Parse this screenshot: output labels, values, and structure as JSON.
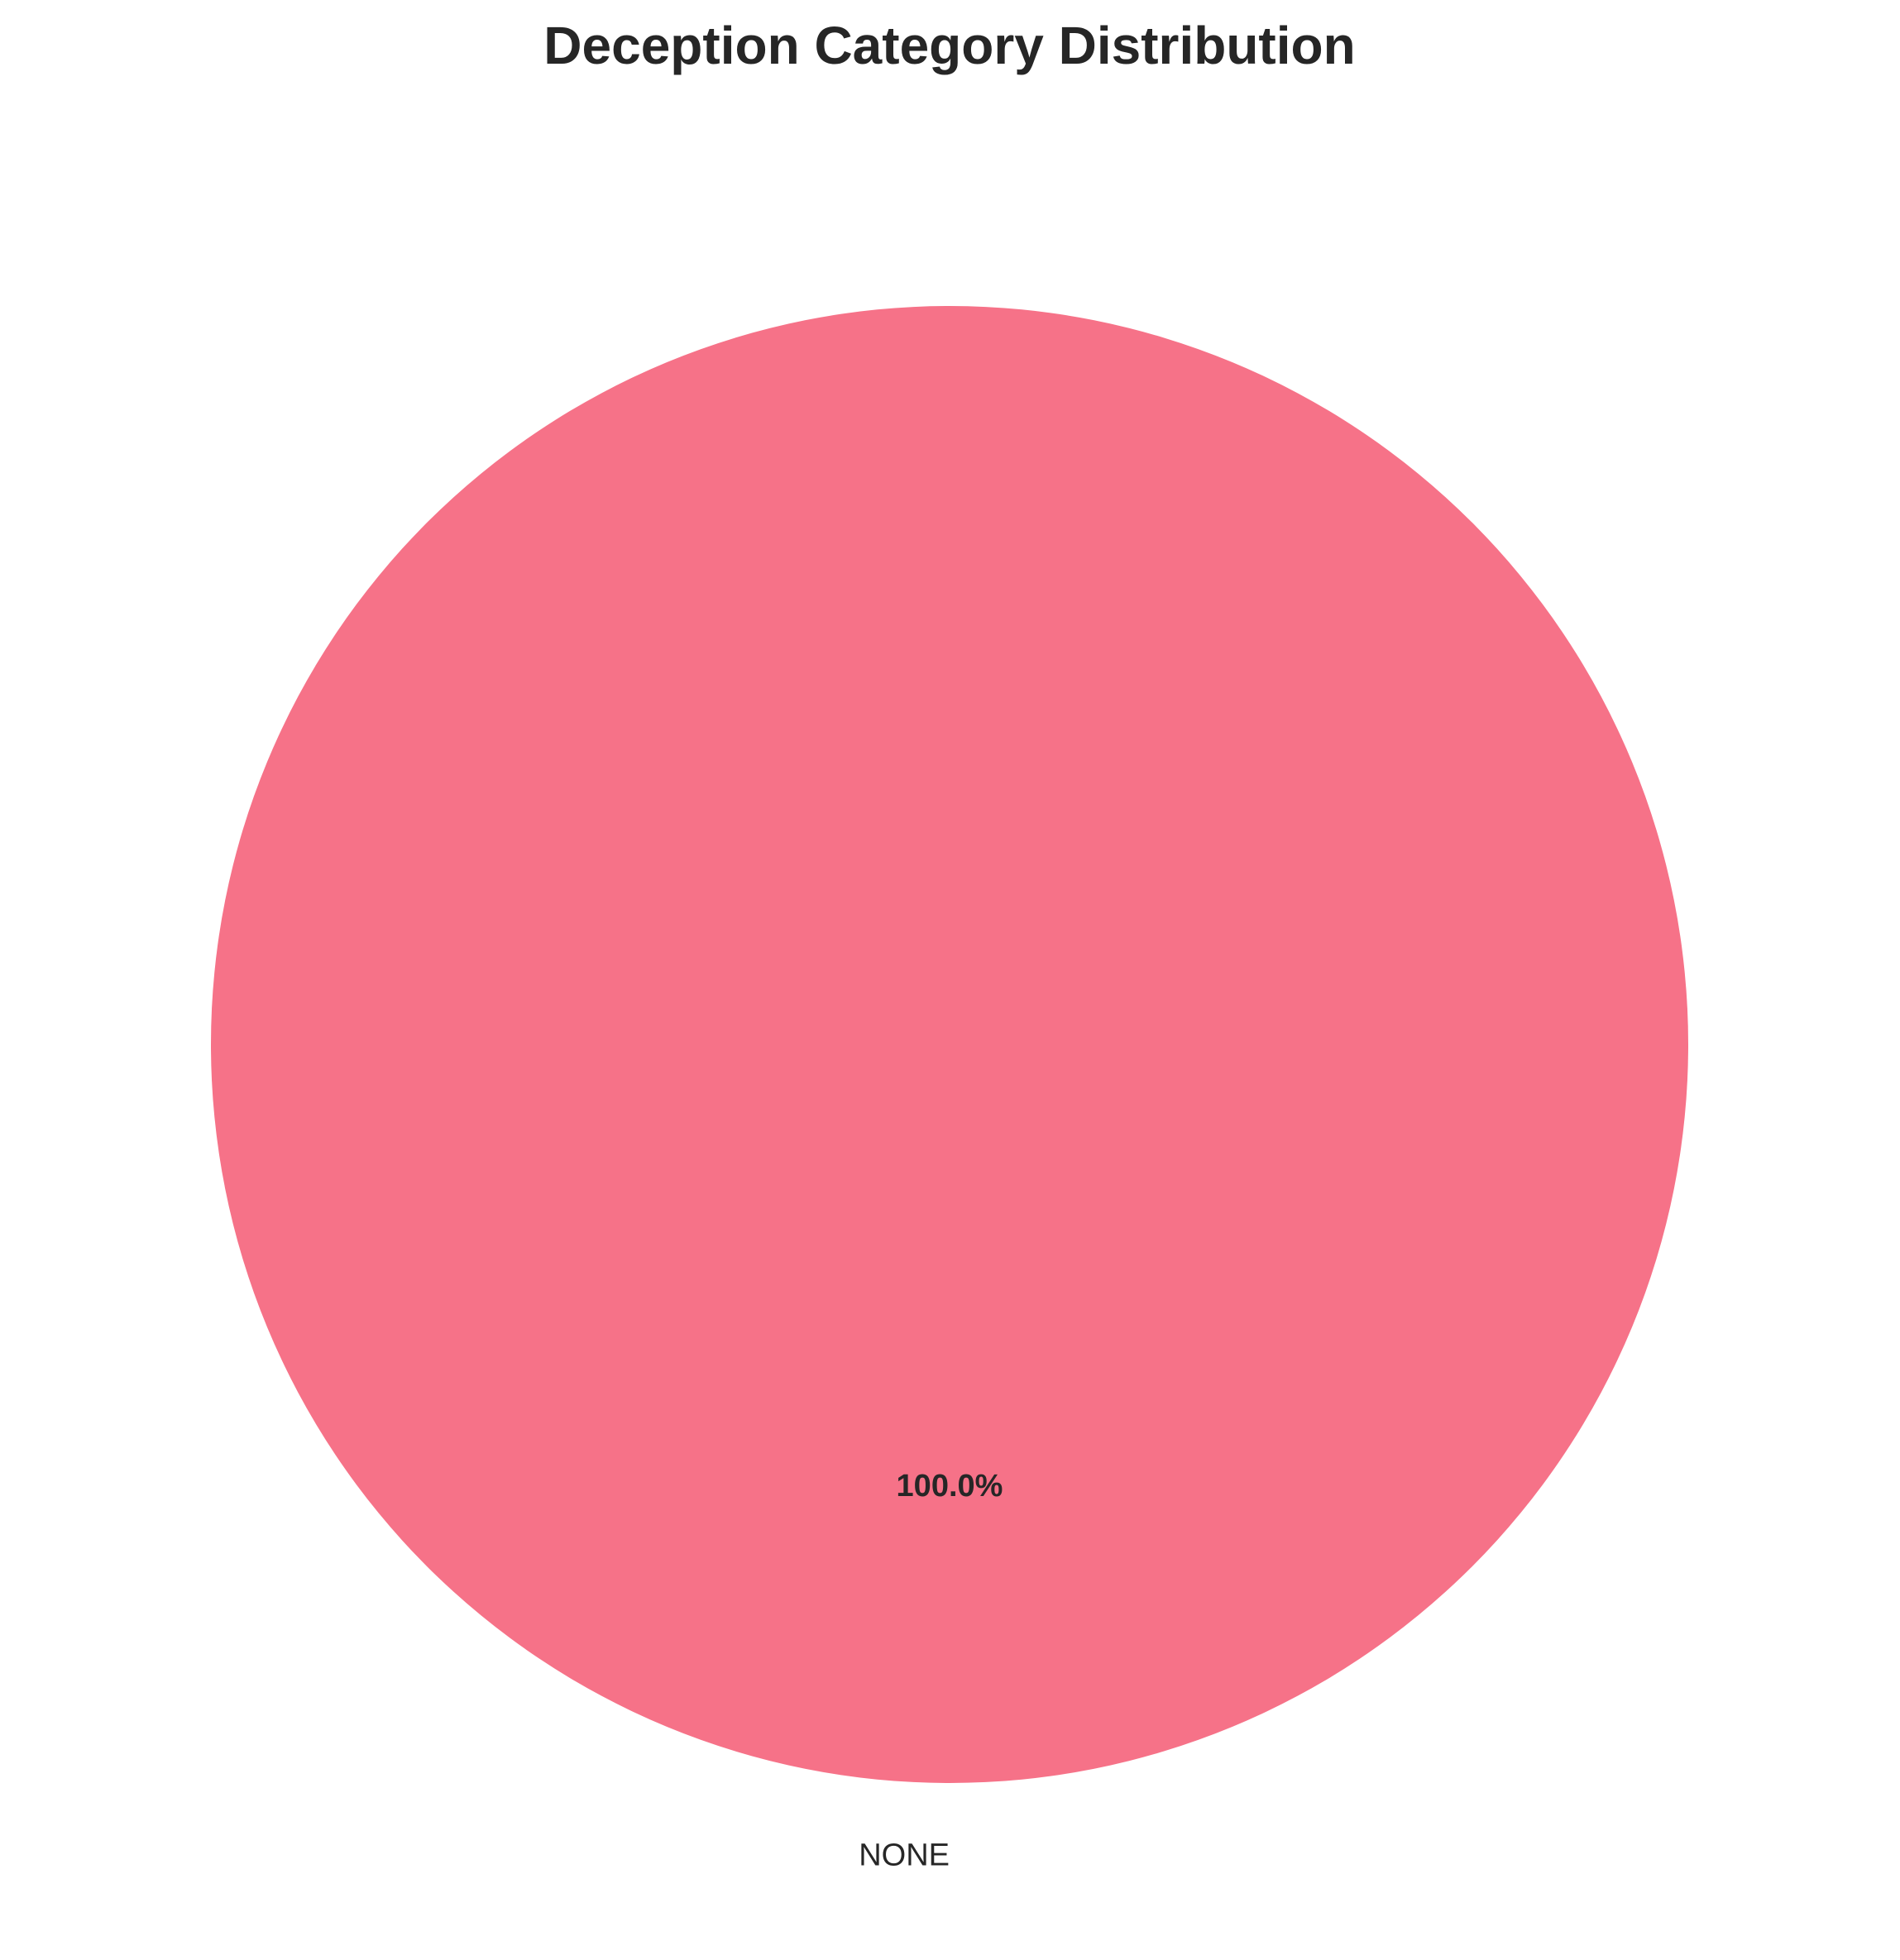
{
  "chart_data": {
    "type": "pie",
    "title": "Deception Category Distribution",
    "slices": [
      {
        "label": "NONE",
        "value": 100.0,
        "percent_label": "100.0%",
        "color": "#f67288"
      }
    ]
  }
}
